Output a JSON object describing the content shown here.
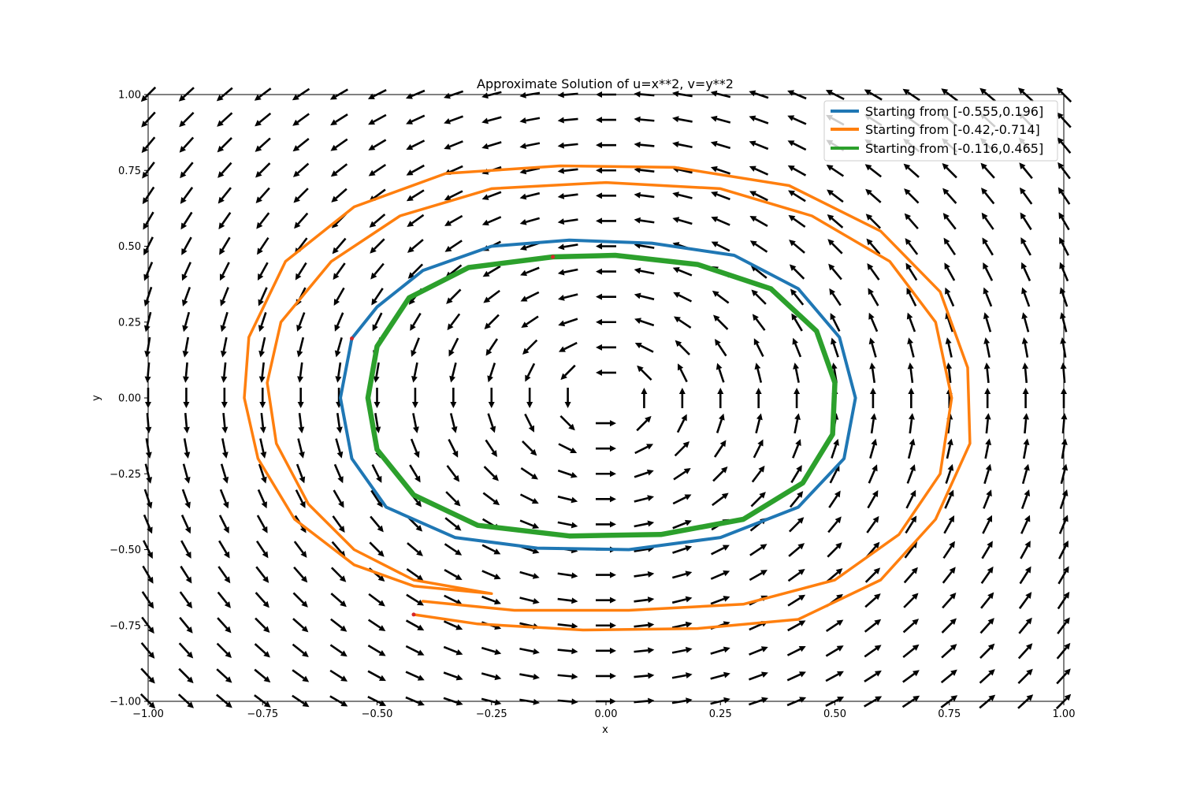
{
  "chart_data": {
    "type": "line",
    "title": "Approximate Solution of u=x**2, v=y**2",
    "xlabel": "x",
    "ylabel": "y",
    "xlim": [
      -1.0,
      1.0
    ],
    "ylim": [
      -1.0,
      1.0
    ],
    "x_ticks": [
      "−1.00",
      "−0.75",
      "−0.50",
      "−0.25",
      "0.00",
      "0.25",
      "0.50",
      "0.75",
      "1.00"
    ],
    "y_ticks": [
      "−1.00",
      "−0.75",
      "−0.50",
      "−0.25",
      "0.00",
      "0.25",
      "0.50",
      "0.75",
      "1.00"
    ],
    "grid": false,
    "legend_position": "top-right",
    "quiver": {
      "x_range": [
        -1.0,
        1.0
      ],
      "y_range": [
        -1.0,
        1.0
      ],
      "grid_size": 25,
      "color": "#000000"
    },
    "series": [
      {
        "name": "Starting from [-0.555,0.196]",
        "color": "#1f77b4",
        "start": [
          -0.555,
          0.196
        ],
        "points": [
          [
            -0.555,
            0.196
          ],
          [
            -0.58,
            0.0
          ],
          [
            -0.555,
            -0.2
          ],
          [
            -0.48,
            -0.36
          ],
          [
            -0.33,
            -0.46
          ],
          [
            -0.15,
            -0.495
          ],
          [
            0.05,
            -0.5
          ],
          [
            0.25,
            -0.46
          ],
          [
            0.42,
            -0.36
          ],
          [
            0.52,
            -0.2
          ],
          [
            0.545,
            0.0
          ],
          [
            0.51,
            0.2
          ],
          [
            0.42,
            0.36
          ],
          [
            0.28,
            0.47
          ],
          [
            0.1,
            0.51
          ],
          [
            -0.08,
            0.52
          ],
          [
            -0.25,
            0.5
          ],
          [
            -0.4,
            0.42
          ],
          [
            -0.5,
            0.3
          ],
          [
            -0.555,
            0.196
          ]
        ]
      },
      {
        "name": "Starting from [-0.42,-0.714]",
        "color": "#ff7f0e",
        "start": [
          -0.42,
          -0.714
        ],
        "points": [
          [
            -0.42,
            -0.714
          ],
          [
            -0.28,
            -0.745
          ],
          [
            -0.05,
            -0.765
          ],
          [
            0.2,
            -0.76
          ],
          [
            0.42,
            -0.73
          ],
          [
            0.6,
            -0.6
          ],
          [
            0.72,
            -0.4
          ],
          [
            0.795,
            -0.15
          ],
          [
            0.79,
            0.1
          ],
          [
            0.73,
            0.35
          ],
          [
            0.6,
            0.55
          ],
          [
            0.4,
            0.7
          ],
          [
            0.15,
            0.76
          ],
          [
            -0.1,
            0.765
          ],
          [
            -0.35,
            0.74
          ],
          [
            -0.55,
            0.63
          ],
          [
            -0.7,
            0.45
          ],
          [
            -0.78,
            0.2
          ],
          [
            -0.79,
            0.0
          ],
          [
            -0.76,
            -0.2
          ],
          [
            -0.68,
            -0.4
          ],
          [
            -0.55,
            -0.55
          ],
          [
            -0.42,
            -0.62
          ],
          [
            -0.25,
            -0.645
          ],
          [
            -0.25,
            -0.645
          ],
          [
            -0.42,
            -0.6
          ],
          [
            -0.55,
            -0.5
          ],
          [
            -0.65,
            -0.35
          ],
          [
            -0.72,
            -0.15
          ],
          [
            -0.74,
            0.05
          ],
          [
            -0.71,
            0.25
          ],
          [
            -0.6,
            0.45
          ],
          [
            -0.45,
            0.6
          ],
          [
            -0.25,
            0.69
          ],
          [
            0.0,
            0.71
          ],
          [
            0.25,
            0.69
          ],
          [
            0.45,
            0.6
          ],
          [
            0.62,
            0.45
          ],
          [
            0.72,
            0.25
          ],
          [
            0.755,
            0.0
          ],
          [
            0.73,
            -0.25
          ],
          [
            0.64,
            -0.45
          ],
          [
            0.5,
            -0.6
          ],
          [
            0.3,
            -0.68
          ],
          [
            0.05,
            -0.7
          ],
          [
            -0.2,
            -0.7
          ],
          [
            -0.4,
            -0.67
          ]
        ]
      },
      {
        "name": "Starting from [-0.116,0.465]",
        "color": "#2ca02c",
        "start": [
          -0.116,
          0.465
        ],
        "points": [
          [
            -0.116,
            0.465
          ],
          [
            -0.3,
            0.43
          ],
          [
            -0.43,
            0.33
          ],
          [
            -0.5,
            0.17
          ],
          [
            -0.52,
            0.0
          ],
          [
            -0.5,
            -0.17
          ],
          [
            -0.42,
            -0.32
          ],
          [
            -0.28,
            -0.42
          ],
          [
            -0.08,
            -0.455
          ],
          [
            0.12,
            -0.45
          ],
          [
            0.3,
            -0.4
          ],
          [
            0.43,
            -0.28
          ],
          [
            0.495,
            -0.12
          ],
          [
            0.5,
            0.05
          ],
          [
            0.46,
            0.22
          ],
          [
            0.36,
            0.36
          ],
          [
            0.2,
            0.44
          ],
          [
            0.02,
            0.47
          ],
          [
            -0.116,
            0.465
          ]
        ]
      }
    ]
  }
}
